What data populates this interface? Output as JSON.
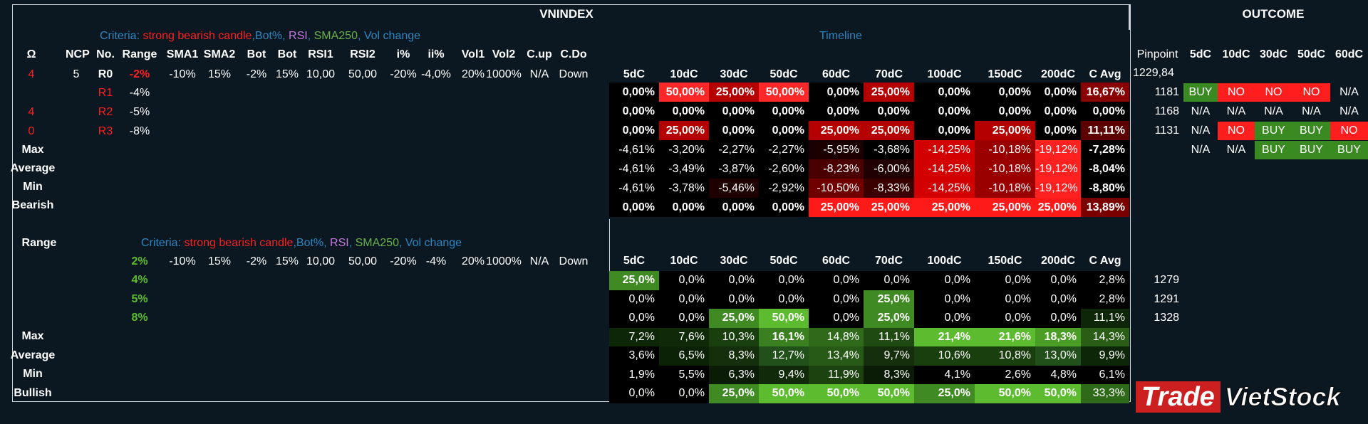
{
  "top": {
    "title": "VNINDEX",
    "outcome_title": "OUTCOME",
    "criteria_label": "Criteria:",
    "criteria_parts": [
      "strong bearish candle",
      ",Bot%, ",
      "RSI",
      ", ",
      "SMA250",
      ", ",
      "Vol change"
    ],
    "timeline": "Timeline",
    "left_headers": [
      "Ω",
      "NCP",
      "No.",
      "Range",
      "SMA1",
      "SMA2",
      "Bot",
      "Bot",
      "RSI1",
      "RSI2",
      "i%",
      "ii%",
      "Vol1",
      "Vol2",
      "C.up",
      "C.Do"
    ],
    "left_values": [
      "4",
      "5",
      "R0",
      "-2%",
      "-10%",
      "15%",
      "-2%",
      "15%",
      "10,00",
      "50,00",
      "-20%",
      "-4,0%",
      "20%",
      "1000%",
      "N/A",
      "Down"
    ],
    "r_rows": [
      {
        "omega": "",
        "no": "R1",
        "range": "-4%"
      },
      {
        "omega": "4",
        "no": "R2",
        "range": "-5%"
      },
      {
        "omega": "0",
        "no": "R3",
        "range": "-8%"
      }
    ],
    "stat_labels": [
      "Max",
      "Average",
      "Min",
      "Bearish"
    ],
    "tl_headers": [
      "5dC",
      "10dC",
      "30dC",
      "50dC",
      "60dC",
      "70dC",
      "100dC",
      "150dC",
      "200dC",
      "C Avg"
    ],
    "tl_rows": [
      [
        "0,00%",
        "50,00%",
        "25,00%",
        "50,00%",
        "0,00%",
        "25,00%",
        "0,00%",
        "0,00%",
        "0,00%",
        "16,67%"
      ],
      [
        "0,00%",
        "0,00%",
        "0,00%",
        "0,00%",
        "0,00%",
        "0,00%",
        "0,00%",
        "0,00%",
        "0,00%",
        "0,00%"
      ],
      [
        "0,00%",
        "25,00%",
        "0,00%",
        "0,00%",
        "25,00%",
        "25,00%",
        "0,00%",
        "25,00%",
        "0,00%",
        "11,11%"
      ],
      [
        "-4,61%",
        "-3,20%",
        "-2,27%",
        "-2,27%",
        "-5,95%",
        "-3,68%",
        "-14,25%",
        "-10,18%",
        "-19,12%",
        "-7,28%"
      ],
      [
        "-4,61%",
        "-3,49%",
        "-3,87%",
        "-2,60%",
        "-8,23%",
        "-6,00%",
        "-14,25%",
        "-10,18%",
        "-19,12%",
        "-8,04%"
      ],
      [
        "-4,61%",
        "-3,78%",
        "-5,46%",
        "-2,92%",
        "-10,50%",
        "-8,33%",
        "-14,25%",
        "-10,18%",
        "-19,12%",
        "-8,80%"
      ],
      [
        "0,00%",
        "0,00%",
        "0,00%",
        "0,00%",
        "25,00%",
        "25,00%",
        "25,00%",
        "25,00%",
        "25,00%",
        "13,89%"
      ]
    ],
    "tl_colors": [
      [
        "#000000",
        "#ff2828",
        "#b50000",
        "#ff2828",
        "#000000",
        "#b50000",
        "#000000",
        "#000000",
        "#000000",
        "#8a0000"
      ],
      [
        "#000000",
        "#000000",
        "#000000",
        "#000000",
        "#000000",
        "#000000",
        "#000000",
        "#000000",
        "#000000",
        "#000000"
      ],
      [
        "#000000",
        "#b50000",
        "#000000",
        "#000000",
        "#b50000",
        "#b50000",
        "#000000",
        "#b50000",
        "#000000",
        "#5c0000"
      ],
      [
        "#000000",
        "#000000",
        "#000000",
        "#000000",
        "#1a0000",
        "#000000",
        "#d20000",
        "#9a0000",
        "#ff2020",
        "#000000"
      ],
      [
        "#000000",
        "#000000",
        "#000000",
        "#000000",
        "#4a0000",
        "#200000",
        "#d20000",
        "#9a0000",
        "#ff2020",
        "#000000"
      ],
      [
        "#000000",
        "#000000",
        "#1e0000",
        "#000000",
        "#700000",
        "#3a0000",
        "#d20000",
        "#9a0000",
        "#ff2020",
        "#000000"
      ],
      [
        "#000000",
        "#000000",
        "#000000",
        "#000000",
        "#ff1a1a",
        "#ff1a1a",
        "#ff1a1a",
        "#ff1a1a",
        "#ff1a1a",
        "#7a0000"
      ]
    ],
    "outcome_headers": [
      "Pinpoint",
      "5dC",
      "10dC",
      "30dC",
      "50dC",
      "60dC"
    ],
    "pinpoint_values": [
      "1229,84",
      "1181",
      "1168",
      "1131"
    ],
    "outcome_rows": [
      [
        "BUY",
        "NO",
        "NO",
        "NO",
        "N/A"
      ],
      [
        "N/A",
        "N/A",
        "N/A",
        "N/A",
        "N/A"
      ],
      [
        "N/A",
        "NO",
        "BUY",
        "BUY",
        "NO"
      ],
      [
        "N/A",
        "N/A",
        "BUY",
        "BUY",
        "BUY"
      ]
    ]
  },
  "bottom": {
    "range_label": "Range",
    "criteria_label": "Criteria:",
    "criteria_parts": [
      "strong bearish candle",
      ",Bot%, ",
      "RSI",
      ", ",
      "SMA250",
      ", ",
      "Vol change"
    ],
    "left_values": [
      "2%",
      "-10%",
      "15%",
      "-2%",
      "15%",
      "10,00",
      "50,00",
      "-20%",
      "-4%",
      "20%",
      "1000%",
      "N/A",
      "Down"
    ],
    "r_ranges": [
      "4%",
      "5%",
      "8%"
    ],
    "stat_labels": [
      "Max",
      "Average",
      "Min",
      "Bullish"
    ],
    "tl_headers": [
      "5dC",
      "10dC",
      "30dC",
      "50dC",
      "60dC",
      "70dC",
      "100dC",
      "150dC",
      "200dC",
      "C Avg"
    ],
    "tl_rows": [
      [
        "25,0%",
        "0,0%",
        "0,0%",
        "0,0%",
        "0,0%",
        "0,0%",
        "0,0%",
        "0,0%",
        "0,0%",
        "2,8%"
      ],
      [
        "0,0%",
        "0,0%",
        "0,0%",
        "0,0%",
        "0,0%",
        "25,0%",
        "0,0%",
        "0,0%",
        "0,0%",
        "2,8%"
      ],
      [
        "0,0%",
        "0,0%",
        "25,0%",
        "50,0%",
        "0,0%",
        "25,0%",
        "0,0%",
        "0,0%",
        "0,0%",
        "11,1%"
      ],
      [
        "7,2%",
        "7,6%",
        "10,3%",
        "16,1%",
        "14,8%",
        "11,1%",
        "21,4%",
        "21,6%",
        "18,3%",
        "14,3%"
      ],
      [
        "3,6%",
        "6,5%",
        "8,3%",
        "12,7%",
        "13,4%",
        "9,7%",
        "10,6%",
        "10,8%",
        "13,0%",
        "9,9%"
      ],
      [
        "1,9%",
        "5,5%",
        "6,3%",
        "9,4%",
        "11,9%",
        "8,3%",
        "4,1%",
        "2,6%",
        "4,8%",
        "6,1%"
      ],
      [
        "0,0%",
        "0,0%",
        "25,0%",
        "50,0%",
        "50,0%",
        "50,0%",
        "25,0%",
        "50,0%",
        "50,0%",
        "33,3%"
      ]
    ],
    "tl_colors": [
      [
        "#3f8a22",
        "#000000",
        "#000000",
        "#000000",
        "#000000",
        "#000000",
        "#000000",
        "#000000",
        "#000000",
        "#000000"
      ],
      [
        "#000000",
        "#000000",
        "#000000",
        "#000000",
        "#000000",
        "#3f8a22",
        "#000000",
        "#000000",
        "#000000",
        "#000000"
      ],
      [
        "#000000",
        "#000000",
        "#3f8a22",
        "#5cbb2e",
        "#000000",
        "#3f8a22",
        "#000000",
        "#000000",
        "#000000",
        "#0e2608"
      ],
      [
        "#0e2608",
        "#102a09",
        "#1a3f0f",
        "#3a7f20",
        "#2f6a1a",
        "#1f4a12",
        "#5cbb2e",
        "#5cbb2e",
        "#4a9e25",
        "#2a5e17"
      ],
      [
        "#000000",
        "#0c2207",
        "#152f0c",
        "#22501a",
        "#275a16",
        "#152f0c",
        "#1a3f0f",
        "#1a3f0f",
        "#22501a",
        "#0e2608"
      ],
      [
        "#000000",
        "#000000",
        "#0a1c06",
        "#112b0a",
        "#1c420f",
        "#0a1c06",
        "#000000",
        "#000000",
        "#000000",
        "#000000"
      ],
      [
        "#000000",
        "#000000",
        "#3f8a22",
        "#5cbb2e",
        "#5cbb2e",
        "#5cbb2e",
        "#3f8a22",
        "#5cbb2e",
        "#5cbb2e",
        "#2f6a1a"
      ]
    ],
    "pinpoint_values": [
      "1279",
      "1291",
      "1328"
    ]
  },
  "logo": {
    "part1": "Trade",
    "part2": "VietStock"
  },
  "colors": {
    "background": "#0b1821",
    "criteria_blue": "#2e86c1",
    "red": "#ff2020",
    "green": "#5cbf2a",
    "rsi_purple": "#c678dd",
    "sma_green": "#6ab04c",
    "buy_bg": "#3a8a22",
    "no_bg": "#ff1e1e"
  }
}
